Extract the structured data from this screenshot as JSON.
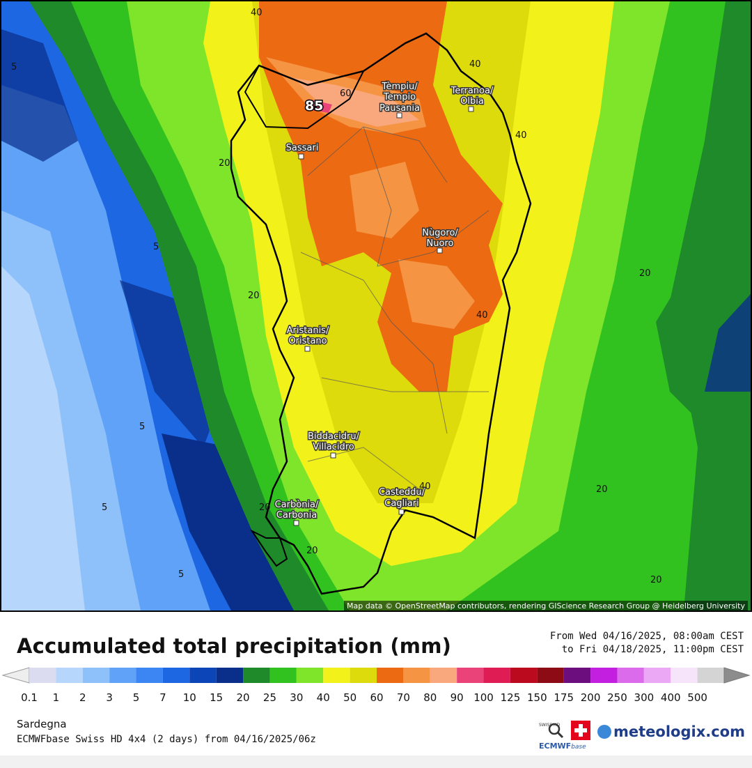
{
  "map": {
    "attribution": "Map data © OpenStreetMap contributors, rendering GIScience Research Group @ Heidelberg University",
    "peak_value": "85",
    "cities": [
      {
        "name": "tempio",
        "line1": "Tèmpiu/",
        "line2": "Tempio",
        "line3": "Pausania"
      },
      {
        "name": "olbia",
        "line1": "Terranoa/",
        "line2": "Olbia"
      },
      {
        "name": "sassari",
        "line1": "Sassari"
      },
      {
        "name": "nuoro",
        "line1": "Nùgoro/",
        "line2": "Nuoro"
      },
      {
        "name": "oristano",
        "line1": "Aristanis/",
        "line2": "Oristano"
      },
      {
        "name": "villacidro",
        "line1": "Biddacidru/",
        "line2": "Villacidro"
      },
      {
        "name": "cagliari",
        "line1": "Casteddu/",
        "line2": "Cagliari"
      },
      {
        "name": "carbonia",
        "line1": "Carbònia/",
        "line2": "Carbonia"
      }
    ],
    "contour_labels": [
      "40",
      "40",
      "60",
      "40",
      "20",
      "5",
      "5",
      "20",
      "20",
      "40",
      "5",
      "20",
      "20",
      "40",
      "5",
      "20",
      "20",
      "5",
      "20"
    ],
    "colors": {
      "sea_dark": "#0a2f8a",
      "blue": "#1f6fe8",
      "light_blue": "#6aa8f0",
      "pale_blue": "#b9d6f5",
      "green_dark": "#1e8a2a",
      "green": "#31c21f",
      "green_light": "#7fe52b",
      "yellow": "#f2f21a",
      "olive": "#dedb0c",
      "orange": "#ec6a12",
      "orange_light": "#f59443",
      "salmon": "#f9a77c",
      "pink": "#e9437a"
    }
  },
  "legend": {
    "title": "Accumulated total precipitation (mm)",
    "period_from": "From Wed 04/16/2025, 08:00am CEST",
    "period_to": "to Fri 04/18/2025, 11:00pm CEST",
    "ticks": [
      "0.1",
      "1",
      "2",
      "3",
      "5",
      "7",
      "10",
      "15",
      "20",
      "25",
      "30",
      "40",
      "50",
      "60",
      "70",
      "80",
      "90",
      "100",
      "125",
      "150",
      "175",
      "200",
      "250",
      "300",
      "400",
      "500"
    ],
    "colors": [
      "#dcdcf0",
      "#b7d6fb",
      "#8ec0fa",
      "#5fa2f7",
      "#3b86f3",
      "#1d67e2",
      "#0c45b8",
      "#0a2f8a",
      "#1e8a2a",
      "#31c21f",
      "#7fe52b",
      "#f2f21a",
      "#dedb0c",
      "#ec6a12",
      "#f59443",
      "#f9a77c",
      "#e9437a",
      "#e01c55",
      "#bb0a1e",
      "#8c0b14",
      "#6c0e7e",
      "#c21fe0",
      "#dc6bec",
      "#eaa8f5",
      "#f6e4fb",
      "#d4d4d4"
    ],
    "region": "Sardegna",
    "model": "ECMWFbase Swiss HD 4x4 (2 days) from  04/16/2025/06z"
  },
  "logos": {
    "swiss_hd": "SWISS HD",
    "ecmwf": "ECMWF",
    "ecmwf_suffix": "base",
    "brand": "meteologix.com"
  }
}
